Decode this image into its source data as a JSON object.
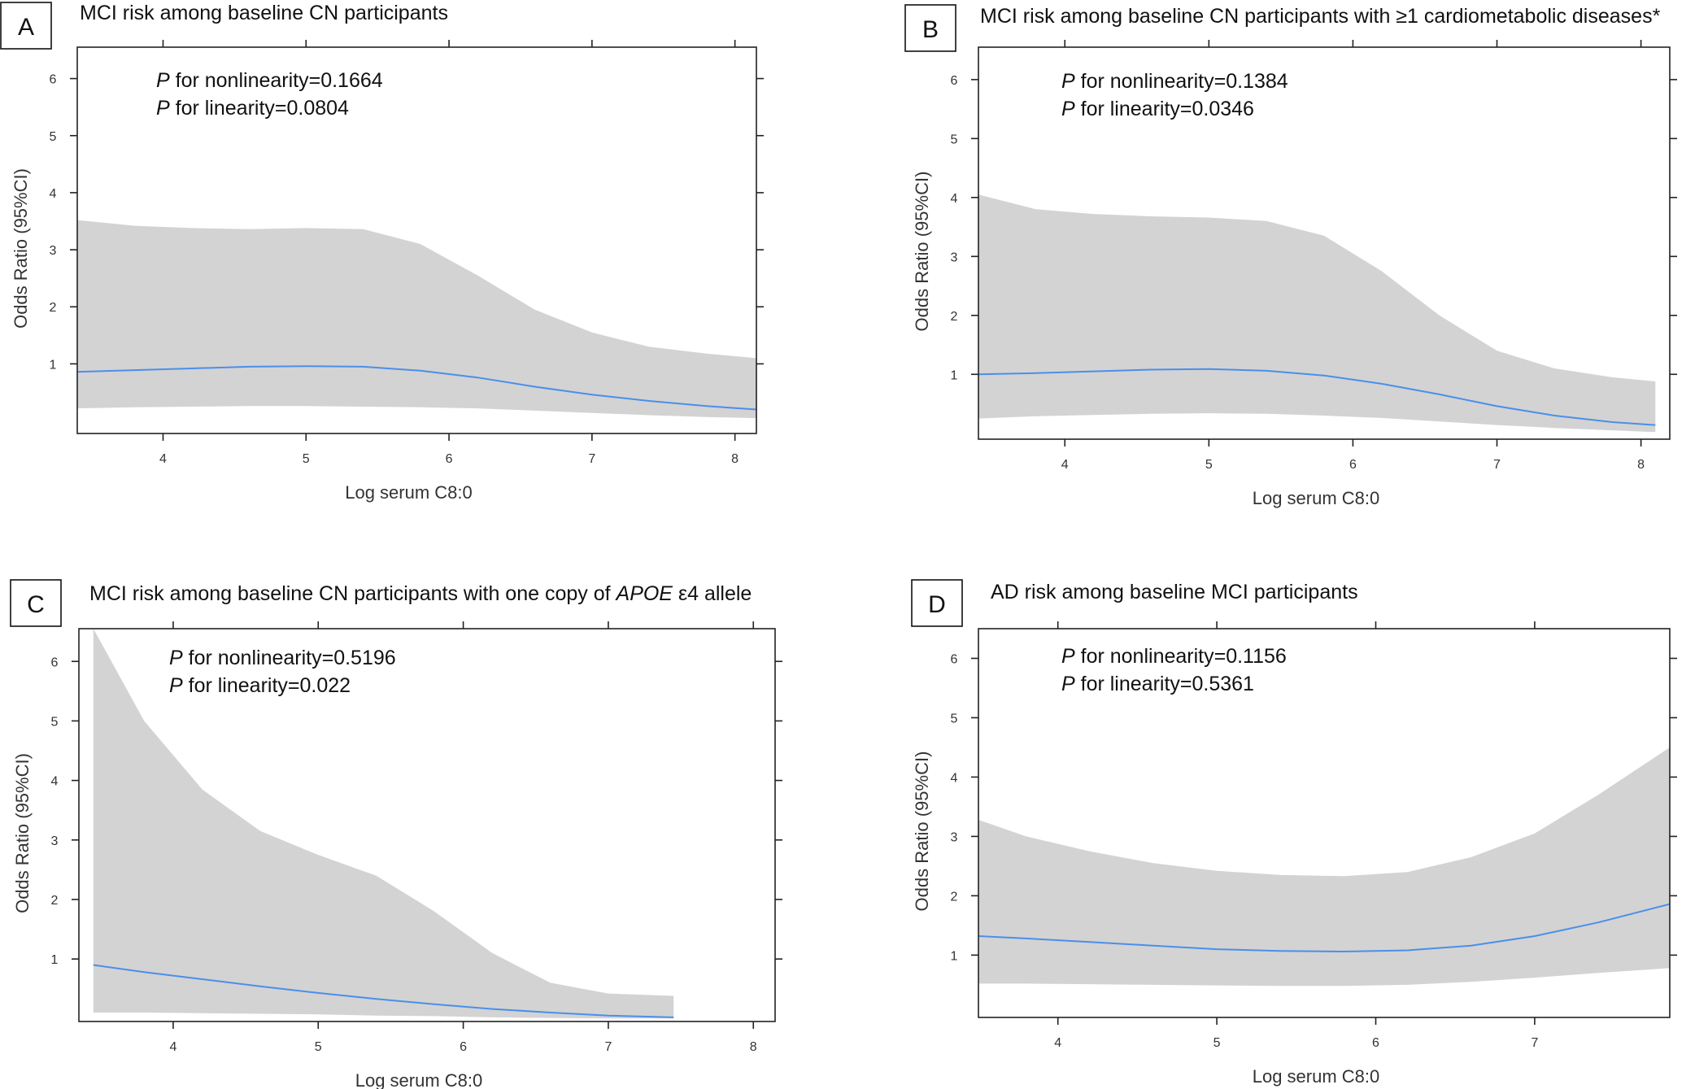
{
  "chart_data": [
    {
      "type": "line",
      "panel": "A",
      "title": "MCI risk among baseline CN participants",
      "title_italic": "",
      "title_after": "",
      "annotations": [
        {
          "label": "P",
          "text": " for nonlinearity=0.1664"
        },
        {
          "label": "P",
          "text": " for linearity=0.0804"
        }
      ],
      "xlabel": "Log serum C8:0",
      "ylabel": "Odds Ratio (95%CI)",
      "xlim": [
        3.4,
        8.15
      ],
      "ylim": [
        -0.22,
        6.55
      ],
      "xticks": [
        4,
        5,
        6,
        7,
        8
      ],
      "yticks": [
        1,
        2,
        3,
        4,
        5,
        6
      ],
      "x": [
        3.4,
        3.8,
        4.2,
        4.6,
        5.0,
        5.4,
        5.8,
        6.2,
        6.6,
        7.0,
        7.4,
        7.8,
        8.15
      ],
      "or": [
        0.86,
        0.89,
        0.92,
        0.95,
        0.96,
        0.95,
        0.88,
        0.76,
        0.6,
        0.46,
        0.35,
        0.26,
        0.2
      ],
      "upper": [
        3.52,
        3.42,
        3.38,
        3.36,
        3.38,
        3.36,
        3.1,
        2.55,
        1.95,
        1.55,
        1.3,
        1.18,
        1.1
      ],
      "lower": [
        0.22,
        0.24,
        0.25,
        0.26,
        0.26,
        0.25,
        0.24,
        0.22,
        0.18,
        0.14,
        0.1,
        0.07,
        0.05
      ]
    },
    {
      "type": "line",
      "panel": "B",
      "title": "MCI risk among baseline CN participants with ≥1 cardiometabolic diseases*",
      "title_italic": "",
      "title_after": "",
      "annotations": [
        {
          "label": "P",
          "text": " for nonlinearity=0.1384"
        },
        {
          "label": "P",
          "text": " for linearity=0.0346"
        }
      ],
      "xlabel": "Log serum C8:0",
      "ylabel": "Odds Ratio (95%CI)",
      "xlim": [
        3.4,
        8.2
      ],
      "ylim": [
        -0.1,
        6.55
      ],
      "xticks": [
        4,
        5,
        6,
        7,
        8
      ],
      "yticks": [
        1,
        2,
        3,
        4,
        5,
        6
      ],
      "x": [
        3.4,
        3.8,
        4.2,
        4.6,
        5.0,
        5.4,
        5.8,
        6.2,
        6.6,
        7.0,
        7.4,
        7.8,
        8.1
      ],
      "or": [
        1.0,
        1.02,
        1.05,
        1.08,
        1.09,
        1.06,
        0.98,
        0.84,
        0.66,
        0.46,
        0.3,
        0.19,
        0.14
      ],
      "upper": [
        4.05,
        3.8,
        3.72,
        3.68,
        3.66,
        3.6,
        3.35,
        2.75,
        2.0,
        1.4,
        1.1,
        0.95,
        0.88
      ],
      "lower": [
        0.25,
        0.29,
        0.31,
        0.33,
        0.34,
        0.33,
        0.3,
        0.26,
        0.2,
        0.14,
        0.09,
        0.05,
        0.02
      ]
    },
    {
      "type": "line",
      "panel": "C",
      "title": "MCI risk among baseline CN participants with one copy of ",
      "title_italic": "APOE",
      "title_after": " ε4 allele",
      "annotations": [
        {
          "label": "P",
          "text": " for nonlinearity=0.5196"
        },
        {
          "label": "P",
          "text": " for linearity=0.022"
        }
      ],
      "xlabel": "Log serum C8:0",
      "ylabel": "Odds Ratio (95%CI)",
      "xlim": [
        3.35,
        8.15
      ],
      "ylim": [
        -0.05,
        6.55
      ],
      "xticks": [
        4,
        5,
        6,
        7,
        8
      ],
      "yticks": [
        1,
        2,
        3,
        4,
        5,
        6
      ],
      "x": [
        3.45,
        3.8,
        4.2,
        4.6,
        5.0,
        5.4,
        5.8,
        6.2,
        6.6,
        7.0,
        7.45
      ],
      "or": [
        0.9,
        0.78,
        0.66,
        0.54,
        0.43,
        0.33,
        0.24,
        0.16,
        0.1,
        0.05,
        0.02
      ],
      "upper": [
        6.55,
        5.0,
        3.85,
        3.15,
        2.75,
        2.4,
        1.8,
        1.1,
        0.6,
        0.42,
        0.38
      ],
      "lower": [
        0.1,
        0.1,
        0.09,
        0.08,
        0.07,
        0.05,
        0.04,
        0.02,
        0.01,
        0.0,
        0.0
      ]
    },
    {
      "type": "line",
      "panel": "D",
      "title": "AD risk among baseline MCI participants",
      "title_italic": "",
      "title_after": "",
      "annotations": [
        {
          "label": "P",
          "text": " for nonlinearity=0.1156"
        },
        {
          "label": "P",
          "text": " for linearity=0.5361"
        }
      ],
      "xlabel": "Log serum C8:0",
      "ylabel": "Odds Ratio (95%CI)",
      "xlim": [
        3.5,
        7.85
      ],
      "ylim": [
        -0.05,
        6.5
      ],
      "xticks": [
        4,
        5,
        6,
        7
      ],
      "yticks": [
        1,
        2,
        3,
        4,
        5,
        6
      ],
      "x": [
        3.5,
        3.8,
        4.2,
        4.6,
        5.0,
        5.4,
        5.8,
        6.2,
        6.6,
        7.0,
        7.4,
        7.85
      ],
      "or": [
        1.32,
        1.28,
        1.22,
        1.16,
        1.1,
        1.07,
        1.06,
        1.08,
        1.16,
        1.32,
        1.55,
        1.86
      ],
      "upper": [
        3.28,
        3.0,
        2.75,
        2.55,
        2.42,
        2.35,
        2.33,
        2.4,
        2.65,
        3.05,
        3.7,
        4.5
      ],
      "lower": [
        0.52,
        0.52,
        0.51,
        0.5,
        0.49,
        0.48,
        0.48,
        0.5,
        0.55,
        0.62,
        0.7,
        0.78
      ]
    }
  ]
}
